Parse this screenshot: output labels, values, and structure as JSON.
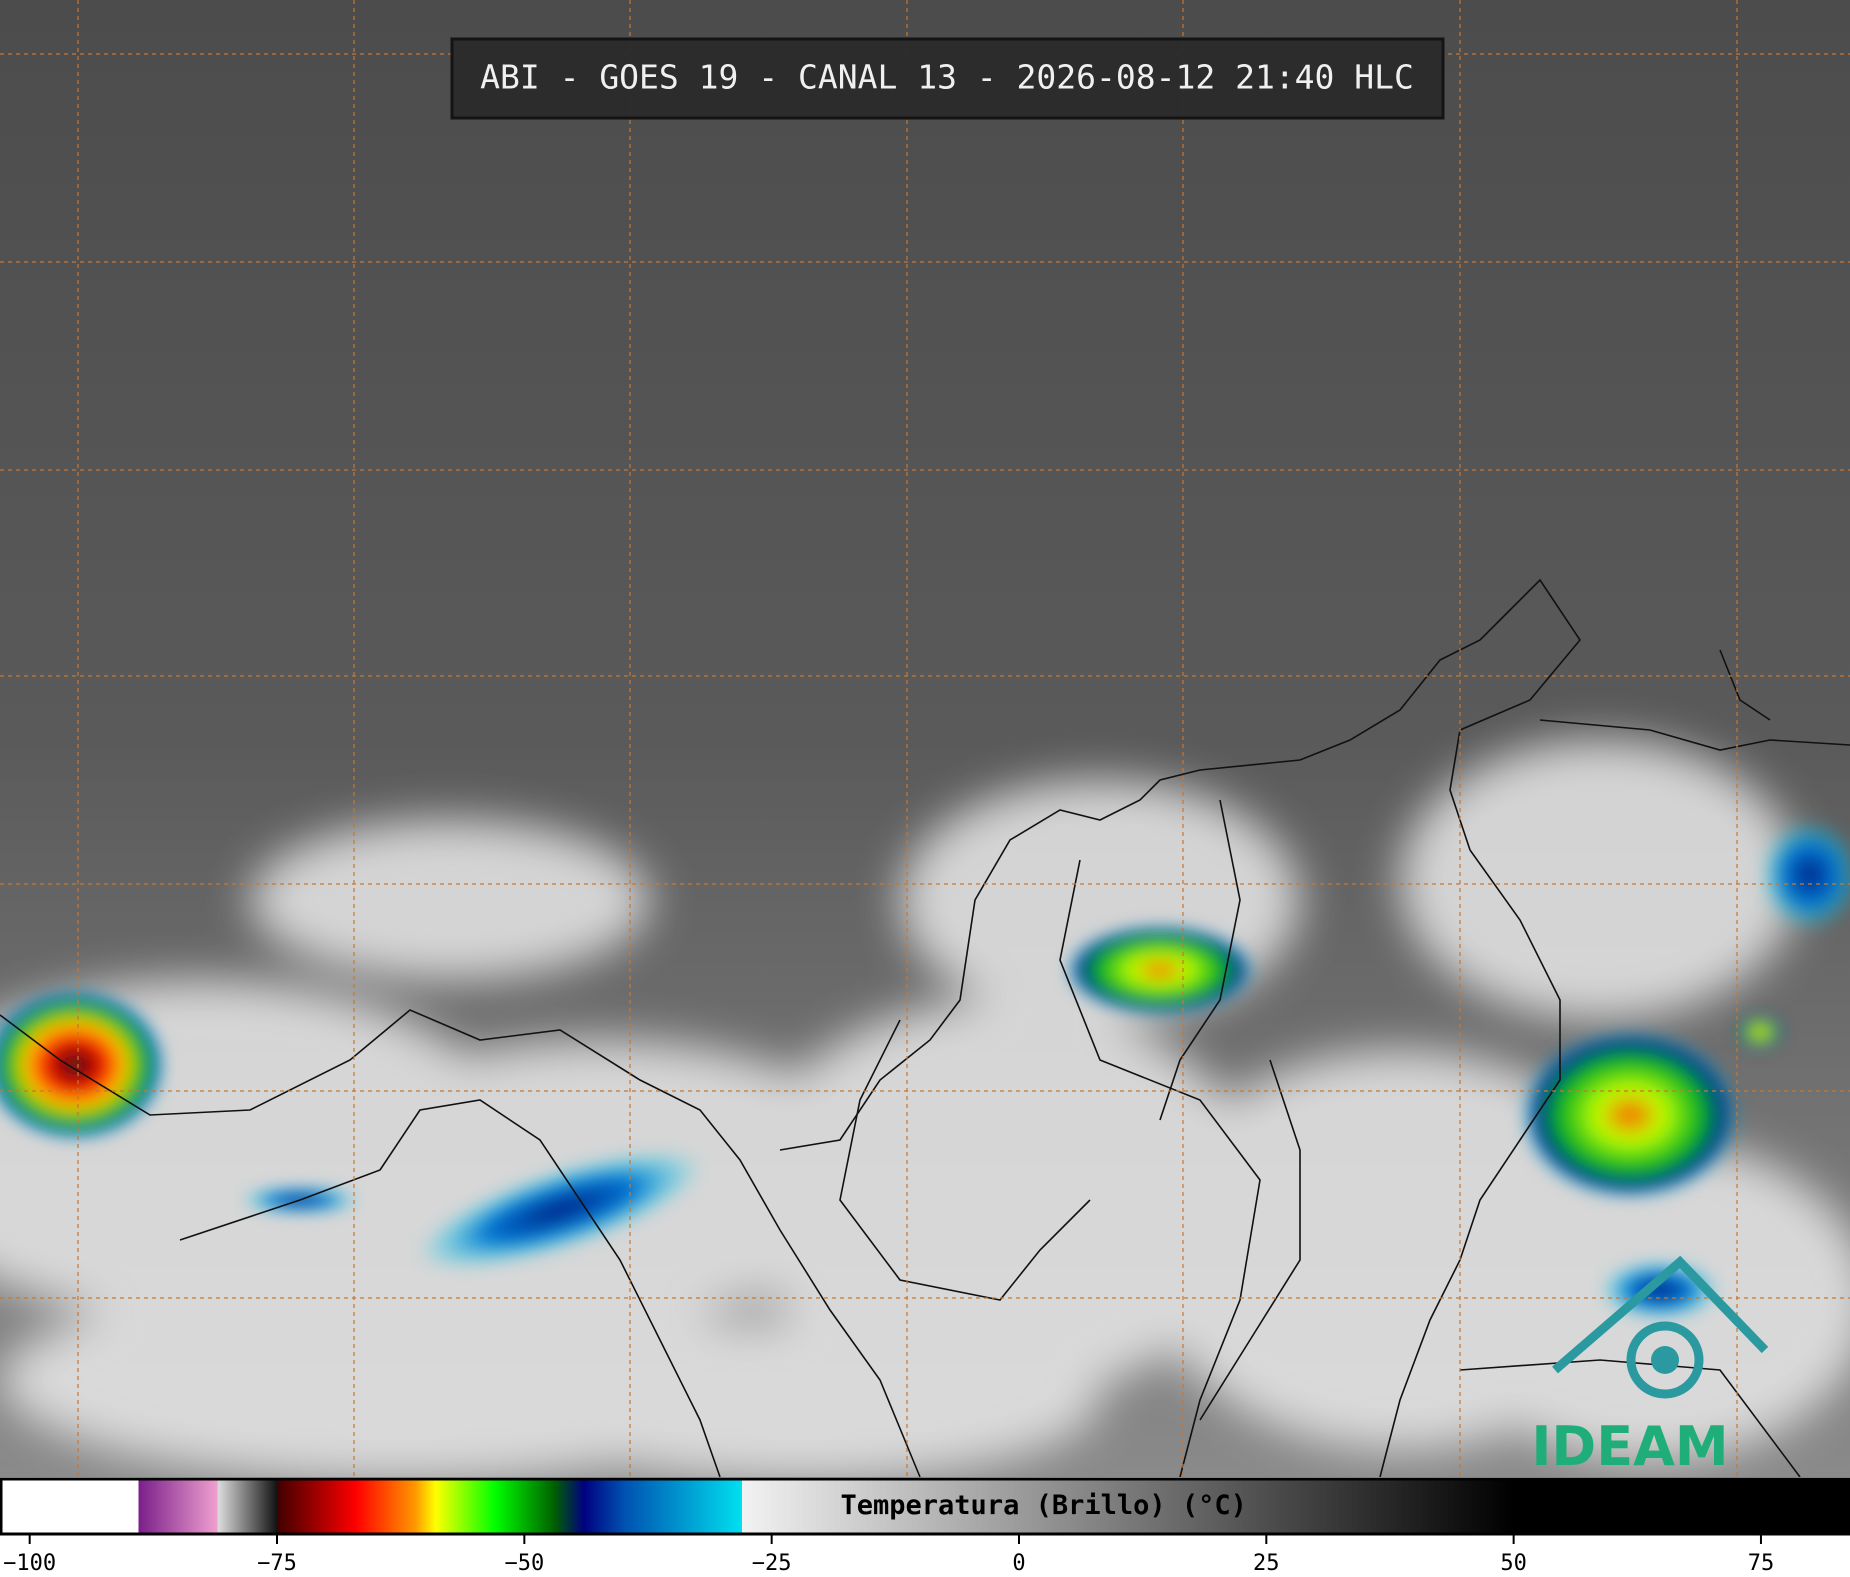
{
  "title": "ABI - GOES 19 - CANAL 13 - 2026-08-12 21:40 HLC",
  "logo": "IDEAM",
  "colorbar": {
    "label": "Temperatura (Brillo) (°C)",
    "lim": [
      -103,
      84
    ],
    "ticks": [
      {
        "value": -100,
        "label": "−100"
      },
      {
        "value": -75,
        "label": "−75"
      },
      {
        "value": -50,
        "label": "−50"
      },
      {
        "value": -25,
        "label": "−25"
      },
      0,
      25,
      50,
      75
    ],
    "stops": [
      {
        "value": -103,
        "color": "#ffffff"
      },
      {
        "value": -89,
        "color": "#ffffff"
      },
      {
        "value": -89,
        "color": "#7a1f8a"
      },
      {
        "value": -81,
        "color": "#f0a0d0"
      },
      {
        "value": -81,
        "color": "#dddddd"
      },
      {
        "value": -75,
        "color": "#111111"
      },
      {
        "value": -75,
        "color": "#400000"
      },
      {
        "value": -67,
        "color": "#ff0000"
      },
      {
        "value": -61,
        "color": "#ff9900"
      },
      {
        "value": -59,
        "color": "#ffff00"
      },
      {
        "value": -53,
        "color": "#00ff00"
      },
      {
        "value": -47,
        "color": "#006000"
      },
      {
        "value": -44,
        "color": "#000080"
      },
      {
        "value": -40,
        "color": "#0050b0"
      },
      {
        "value": -28,
        "color": "#00e0f0"
      },
      {
        "value": -28,
        "color": "#f2f2f2"
      },
      {
        "value": 50,
        "color": "#000000"
      },
      {
        "value": 84,
        "color": "#000000"
      }
    ]
  }
}
